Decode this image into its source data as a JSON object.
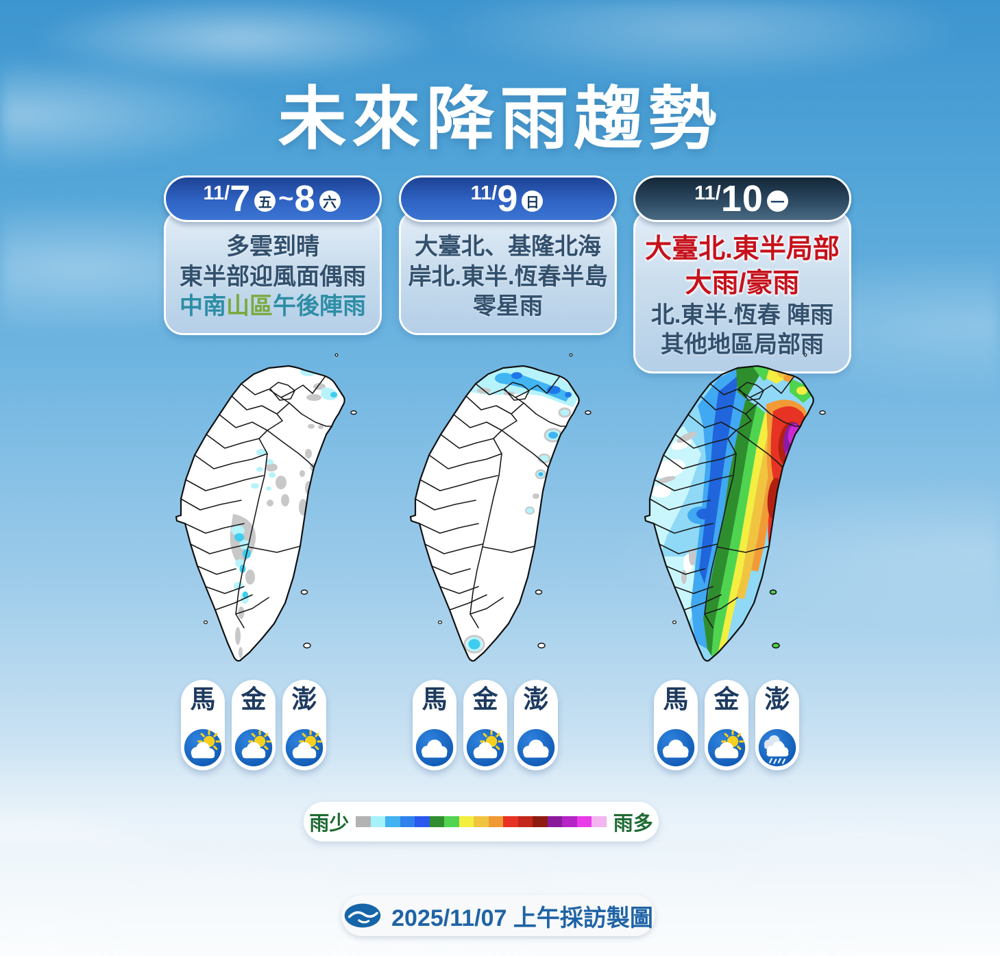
{
  "title": "未來降雨趨勢",
  "panels": [
    {
      "header": {
        "prefix": "11/",
        "num": "7",
        "day": "五",
        "sep": "~",
        "num2": "8",
        "day2": "六"
      },
      "lines": {
        "l1": "多雲到晴",
        "l2": "東半部迎風面偶雨",
        "l3a": "中南",
        "l3b": "山區",
        "l3c": "午後陣雨"
      },
      "islands": [
        {
          "label": "馬",
          "icon": "#icon-partly",
          "condition": "partly-cloudy"
        },
        {
          "label": "金",
          "icon": "#icon-partly",
          "condition": "partly-cloudy"
        },
        {
          "label": "澎",
          "icon": "#icon-partly",
          "condition": "partly-cloudy"
        }
      ]
    },
    {
      "header": {
        "prefix": "11/",
        "num": "9",
        "day": "日"
      },
      "lines": {
        "l1": "大臺北、基隆北海",
        "l2": "岸北.東半.恆春半島",
        "l3": "零星雨"
      },
      "islands": [
        {
          "label": "馬",
          "icon": "#icon-cloudy",
          "condition": "cloudy"
        },
        {
          "label": "金",
          "icon": "#icon-partly",
          "condition": "partly-cloudy"
        },
        {
          "label": "澎",
          "icon": "#icon-cloudy",
          "condition": "cloudy"
        }
      ]
    },
    {
      "header": {
        "prefix": "11/",
        "num": "10",
        "day": "一"
      },
      "lines": {
        "r1": "大臺北.東半局部",
        "r2": "大雨/豪雨",
        "l1": "北.東半.恆春 陣雨",
        "l2": "其他地區局部雨"
      },
      "islands": [
        {
          "label": "馬",
          "icon": "#icon-cloudy",
          "condition": "cloudy"
        },
        {
          "label": "金",
          "icon": "#icon-partly",
          "condition": "partly-cloudy"
        },
        {
          "label": "澎",
          "icon": "#icon-rain",
          "condition": "rain"
        }
      ]
    }
  ],
  "legend": {
    "less": "雨少",
    "more": "雨多",
    "colors": [
      "#b3b3b3",
      "#a6f2fb",
      "#42b2f0",
      "#2f82ee",
      "#2b58ee",
      "#2f8e2f",
      "#52d452",
      "#f4ee3f",
      "#f1c440",
      "#f09a35",
      "#e63323",
      "#c3271a",
      "#8f1a10",
      "#8a1a9c",
      "#b524c4",
      "#e93ce9",
      "#f2b5ef"
    ],
    "label_color": "#1e6b33"
  },
  "footer": {
    "text": "2025/11/07 上午採訪製圖"
  }
}
